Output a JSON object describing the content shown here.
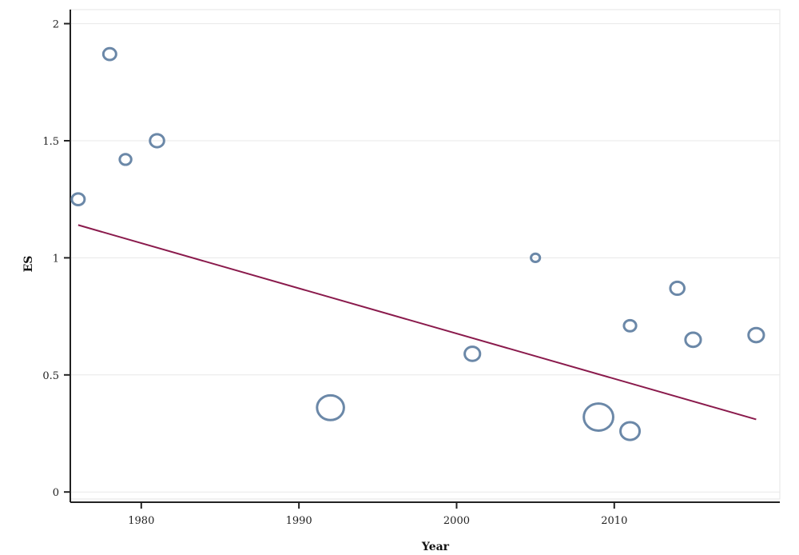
{
  "chart_data": {
    "type": "scatter",
    "title": "",
    "xlabel": "Year",
    "ylabel": "ES",
    "xlim": [
      1975.5,
      2020.5
    ],
    "ylim": [
      -0.03,
      2.06
    ],
    "x_ticks": [
      1980,
      1990,
      2000,
      2010
    ],
    "y_ticks": [
      0,
      0.5,
      1,
      1.5,
      2
    ],
    "y_tick_labels": [
      "0",
      "0.5",
      "1",
      "1.5",
      "2"
    ],
    "grid": true,
    "legend": "none",
    "marker_color": "#6b88a8",
    "line_color": "#8a1a4c",
    "series": [
      {
        "marker": "hollow-circle",
        "points": [
          {
            "x": 1976,
            "y": 1.25,
            "weight": 1.0
          },
          {
            "x": 1978,
            "y": 1.87,
            "weight": 1.0
          },
          {
            "x": 1979,
            "y": 1.42,
            "weight": 0.9
          },
          {
            "x": 1981,
            "y": 1.5,
            "weight": 1.1
          },
          {
            "x": 1992,
            "y": 0.36,
            "weight": 2.1
          },
          {
            "x": 2001,
            "y": 0.59,
            "weight": 1.2
          },
          {
            "x": 2005,
            "y": 1.0,
            "weight": 0.7
          },
          {
            "x": 2009,
            "y": 0.32,
            "weight": 2.3
          },
          {
            "x": 2011,
            "y": 0.71,
            "weight": 0.95
          },
          {
            "x": 2011,
            "y": 0.26,
            "weight": 1.5
          },
          {
            "x": 2014,
            "y": 0.87,
            "weight": 1.1
          },
          {
            "x": 2015,
            "y": 0.65,
            "weight": 1.2
          },
          {
            "x": 2019,
            "y": 0.67,
            "weight": 1.2
          }
        ]
      }
    ],
    "fit_line": {
      "x": [
        1976,
        2019
      ],
      "y": [
        1.14,
        0.31
      ]
    }
  }
}
